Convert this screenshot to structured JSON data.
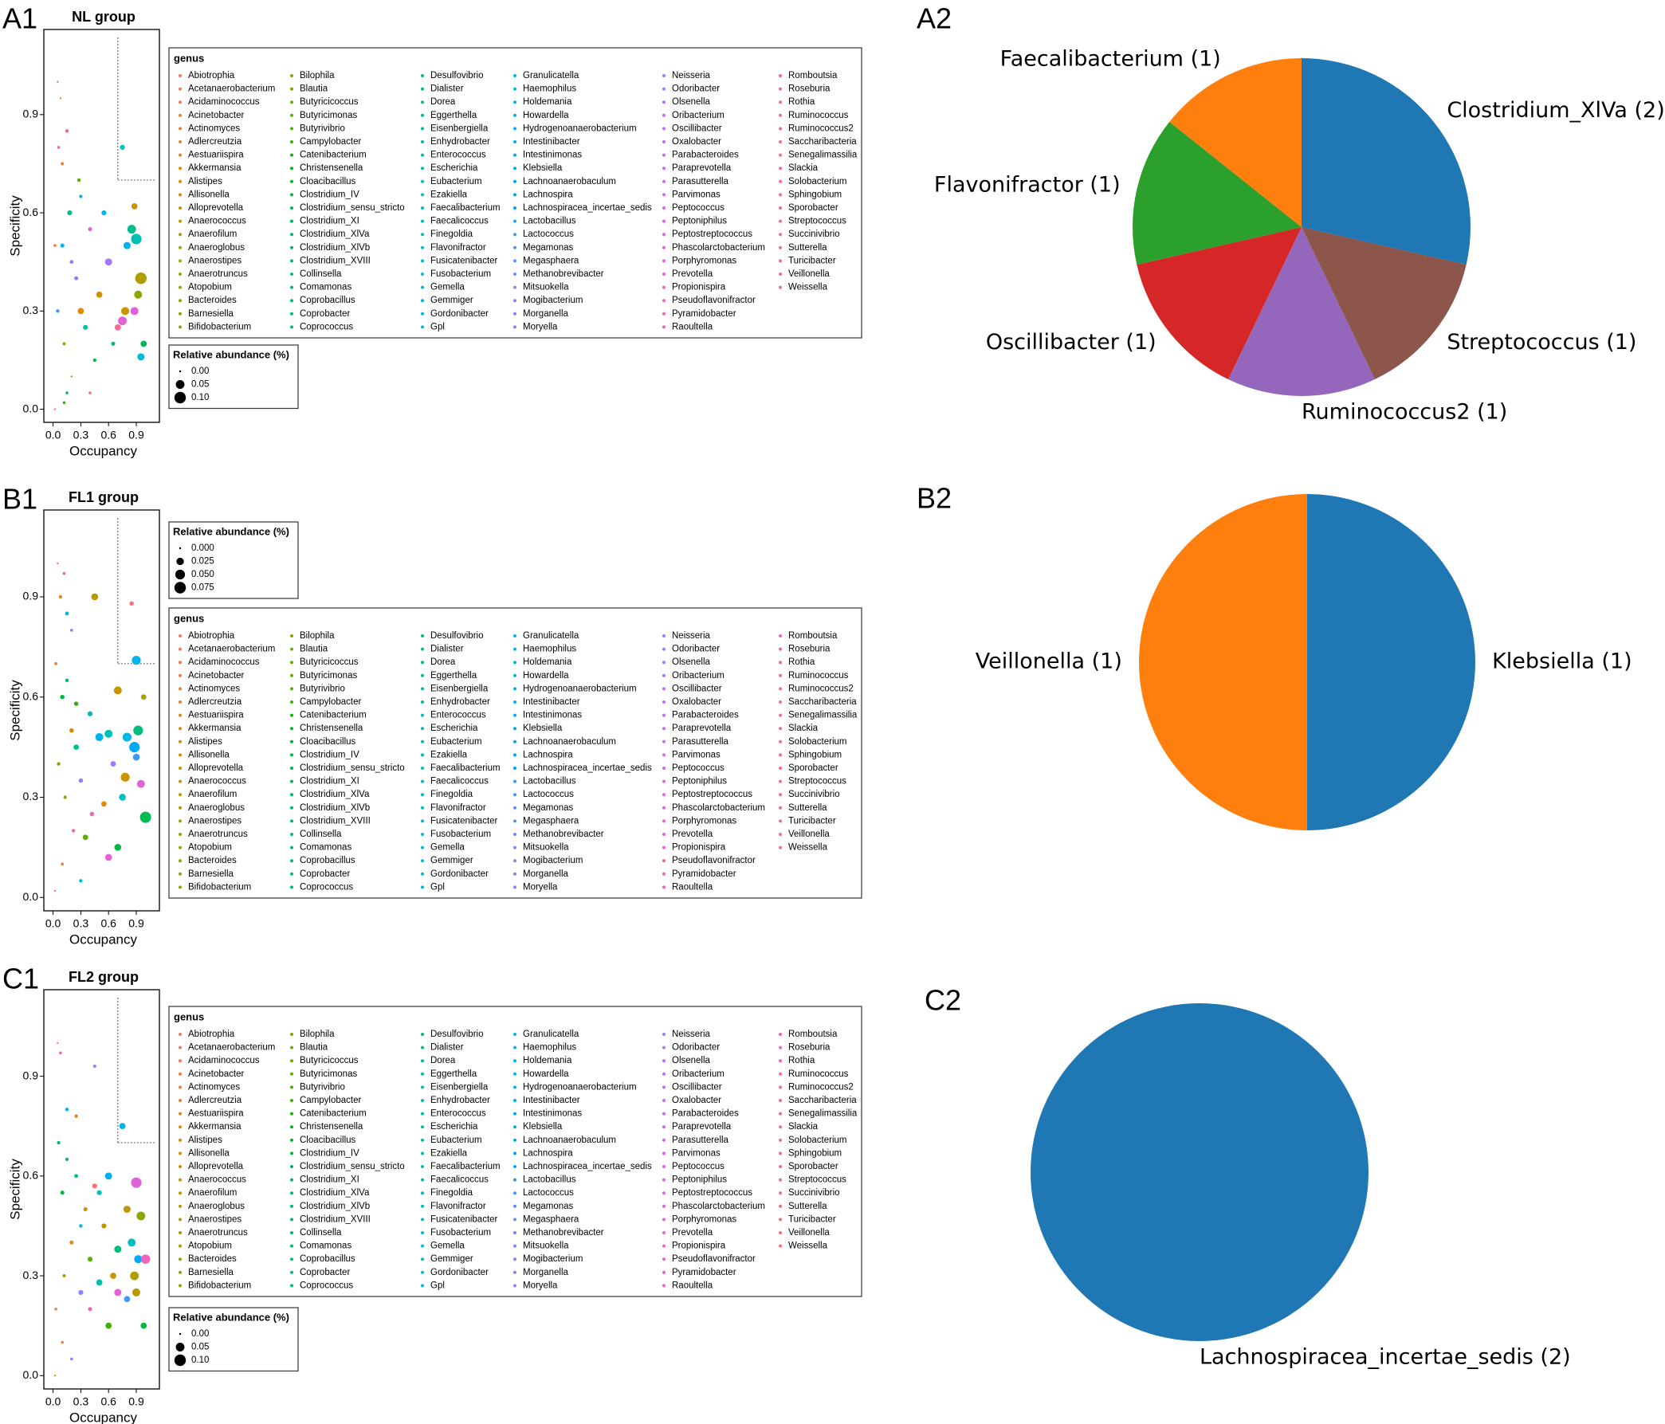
{
  "genus": {
    "title": "genus",
    "names": [
      "Abiotrophia",
      "Acetanaerobacterium",
      "Acidaminococcus",
      "Acinetobacter",
      "Actinomyces",
      "Adlercreutzia",
      "Aestuariispira",
      "Akkermansia",
      "Alistipes",
      "Allisonella",
      "Alloprevotella",
      "Anaerococcus",
      "Anaerofilum",
      "Anaeroglobus",
      "Anaerostipes",
      "Anaerotruncus",
      "Atopobium",
      "Bacteroides",
      "Barnesiella",
      "Bifidobacterium",
      "Bilophila",
      "Blautia",
      "Butyricicoccus",
      "Butyricimonas",
      "Butyrivibrio",
      "Campylobacter",
      "Catenibacterium",
      "Christensenella",
      "Cloacibacillus",
      "Clostridium_IV",
      "Clostridium_sensu_stricto",
      "Clostridium_XI",
      "Clostridium_XlVa",
      "Clostridium_XlVb",
      "Clostridium_XVIII",
      "Collinsella",
      "Comamonas",
      "Coprobacillus",
      "Coprobacter",
      "Coprococcus",
      "Desulfovibrio",
      "Dialister",
      "Dorea",
      "Eggerthella",
      "Eisenbergiella",
      "Enhydrobacter",
      "Enterococcus",
      "Escherichia",
      "Eubacterium",
      "Ezakiella",
      "Faecalibacterium",
      "Faecalicoccus",
      "Finegoldia",
      "Flavonifractor",
      "Fusicatenibacter",
      "Fusobacterium",
      "Gemella",
      "Gemmiger",
      "Gordonibacter",
      "Gpl",
      "Granulicatella",
      "Haemophilus",
      "Holdemania",
      "Howardella",
      "Hydrogenoanaerobacterium",
      "Intestinibacter",
      "Intestinimonas",
      "Klebsiella",
      "Lachnoanaerobaculum",
      "Lachnospira",
      "Lachnospiracea_incertae_sedis",
      "Lactobacillus",
      "Lactococcus",
      "Megamonas",
      "Megasphaera",
      "Methanobrevibacter",
      "Mitsuokella",
      "Mogibacterium",
      "Morganella",
      "Moryella",
      "Neisseria",
      "Odoribacter",
      "Olsenella",
      "Oribacterium",
      "Oscillibacter",
      "Oxalobacter",
      "Parabacteroides",
      "Paraprevotella",
      "Parasutterella",
      "Parvimonas",
      "Peptococcus",
      "Peptoniphilus",
      "Peptostreptococcus",
      "Phascolarctobacterium",
      "Porphyromonas",
      "Prevotella",
      "Propionispira",
      "Pseudoflavonifractor",
      "Pyramidobacter",
      "Raoultella",
      "Romboutsia",
      "Roseburia",
      "Rothia",
      "Ruminococcus",
      "Ruminococcus2",
      "Saccharibacteria",
      "Senegalimassilia",
      "Slackia",
      "Solobacterium",
      "Sphingobium",
      "Sporobacter",
      "Streptococcus",
      "Succinivibrio",
      "Sutterella",
      "Turicibacter",
      "Veillonella",
      "Weissella"
    ],
    "colors": [
      "#F8766D",
      "#F6785F",
      "#F37B51",
      "#F07E43",
      "#EC8134",
      "#E88424",
      "#E3871A",
      "#DE8A00",
      "#D98D00",
      "#D38F00",
      "#CD9200",
      "#C69500",
      "#BF9800",
      "#B89A00",
      "#B09D00",
      "#A89F00",
      "#A0A100",
      "#98A300",
      "#8FA600",
      "#86A800",
      "#7DAA00",
      "#73AC00",
      "#68AE00",
      "#5BB000",
      "#4CB200",
      "#38B400",
      "#14B500",
      "#00B625",
      "#00B734",
      "#00B840",
      "#00B94A",
      "#00BA53",
      "#00BA5B",
      "#00BB62",
      "#00BB68",
      "#00BC6E",
      "#00BC73",
      "#00BD78",
      "#00BD7D",
      "#00BD82",
      "#00BE87",
      "#00BE8C",
      "#00BF91",
      "#00BF96",
      "#00BF9B",
      "#00C0A0",
      "#00C0A5",
      "#00C0AA",
      "#00C0AF",
      "#00C0B4",
      "#00C0B9",
      "#00BFBE",
      "#00BFC3",
      "#00BFC7",
      "#00BECC",
      "#00BED0",
      "#00BDD4",
      "#00BCD8",
      "#00BBDC",
      "#00BAE0",
      "#00B9E3",
      "#00B7E7",
      "#00B5EA",
      "#00B3ED",
      "#00B1F0",
      "#00AFF3",
      "#00ACF6",
      "#00A9F8",
      "#00A6FA",
      "#00A3FC",
      "#00A0FE",
      "#289CFF",
      "#3F98FF",
      "#5094FF",
      "#5E91FF",
      "#6A8DFF",
      "#7589FF",
      "#7F86FF",
      "#8982FF",
      "#927FFF",
      "#9A7BFF",
      "#A278FF",
      "#AA75FE",
      "#B172FC",
      "#B770FA",
      "#BD6DF7",
      "#C36BF4",
      "#C869F1",
      "#CD68ED",
      "#D266E9",
      "#D665E5",
      "#DA64E1",
      "#DE63DC",
      "#E162D7",
      "#E462D2",
      "#E762CD",
      "#E962C8",
      "#EB62C3",
      "#ED62BE",
      "#EF63B9",
      "#F063B4",
      "#F164AF",
      "#F265AA",
      "#F366A5",
      "#F467A0",
      "#F5689B",
      "#F66996",
      "#F66A91",
      "#F76B8C",
      "#F76C87",
      "#F76D83",
      "#F76E7F",
      "#F76F7B",
      "#F77077",
      "#F77173",
      "#F8726F",
      "#F8736C"
    ]
  },
  "chart_data": [
    {
      "type": "scatter",
      "panel": "A1",
      "title": "NL group",
      "x_label": "Occupancy",
      "y_label": "Specificity",
      "xlim": [
        -0.1,
        1.15
      ],
      "ylim": [
        -0.04,
        1.16
      ],
      "xticks": [
        {
          "value": 0,
          "label": "0.0"
        },
        {
          "value": 0.3,
          "label": "0.3"
        },
        {
          "value": 0.6,
          "label": "0.6"
        },
        {
          "value": 0.9,
          "label": "0.9"
        }
      ],
      "yticks": [
        {
          "value": 0,
          "label": "0.0"
        },
        {
          "value": 0.3,
          "label": "0.3"
        },
        {
          "value": 0.6,
          "label": "0.6"
        },
        {
          "value": 0.9,
          "label": "0.9"
        }
      ],
      "cutoff_x": 0.7,
      "cutoff_y": 0.7,
      "size_legend": {
        "title": "Relative abundance (%)",
        "ticks": [
          {
            "value": 0,
            "label": "0.00"
          },
          {
            "value": 0.05,
            "label": "0.05"
          },
          {
            "value": 0.1,
            "label": "0.10"
          }
        ]
      },
      "x": [
        0.02,
        0.05,
        0.08,
        0.1,
        0.12,
        0.15,
        0.18,
        0.2,
        0.25,
        0.28,
        0.3,
        0.35,
        0.4,
        0.45,
        0.5,
        0.55,
        0.6,
        0.65,
        0.7,
        0.75,
        0.78,
        0.8,
        0.85,
        0.88,
        0.9,
        0.92,
        0.95,
        0.98,
        0.02,
        0.05,
        0.1,
        0.15,
        0.2,
        0.3,
        0.4,
        0.06,
        0.12,
        0.75,
        0.95,
        0.88
      ],
      "y": [
        0.0,
        1.0,
        0.95,
        0.5,
        0.2,
        0.85,
        0.6,
        0.1,
        0.4,
        0.7,
        0.3,
        0.25,
        0.55,
        0.15,
        0.35,
        0.6,
        0.45,
        0.2,
        0.25,
        0.8,
        0.3,
        0.5,
        0.55,
        0.3,
        0.52,
        0.35,
        0.4,
        0.2,
        0.5,
        0.3,
        0.75,
        0.05,
        0.45,
        0.65,
        0.05,
        0.8,
        0.02,
        0.27,
        0.16,
        0.62
      ],
      "sizes": [
        0,
        0,
        0,
        0.005,
        0.002,
        0.003,
        0.01,
        0,
        0.005,
        0.003,
        0.02,
        0.01,
        0.005,
        0.002,
        0.02,
        0.01,
        0.03,
        0.005,
        0.02,
        0.01,
        0.04,
        0.03,
        0.05,
        0.04,
        0.08,
        0.04,
        0.1,
        0.02,
        0.001,
        0.003,
        0.002,
        0.001,
        0.004,
        0.002,
        0.001,
        0.001,
        0.001,
        0.05,
        0.03,
        0.02
      ],
      "colors": [
        "#F8766D",
        "#EF63B9",
        "#E3871A",
        "#00B9E3",
        "#A0A100",
        "#F366A5",
        "#00BE87",
        "#B89A00",
        "#7F86FF",
        "#5BB000",
        "#DE8A00",
        "#00C0AA",
        "#E462D2",
        "#00B840",
        "#D38F00",
        "#00B5EA",
        "#A278FF",
        "#00BD78",
        "#F66996",
        "#00BFC3",
        "#C69500",
        "#00B1F0",
        "#00BE8C",
        "#E162D7",
        "#00C0B4",
        "#86A800",
        "#B09D00",
        "#00BA53",
        "#F07E43",
        "#3F98FF",
        "#EC8134",
        "#00BB62",
        "#9A7BFF",
        "#00A9F8",
        "#F77077",
        "#F164AF",
        "#38B400",
        "#E462D2",
        "#00BCD8",
        "#CD9200"
      ]
    },
    {
      "type": "pie",
      "panel": "A2",
      "categories": [
        "Clostridium_XlVa (2)",
        "Streptococcus (1)",
        "Ruminococcus2 (1)",
        "Oscillibacter (1)",
        "Flavonifractor (1)",
        "Faecalibacterium (1)"
      ],
      "values": [
        2,
        1,
        1,
        1,
        1,
        1
      ],
      "colors": [
        "#1f77b4",
        "#8c564b",
        "#9467bd",
        "#d62728",
        "#2ca02c",
        "#ff7f0e"
      ]
    },
    {
      "type": "scatter",
      "panel": "B1",
      "title": "FL1 group",
      "x_label": "Occupancy",
      "y_label": "Specificity",
      "xlim": [
        -0.1,
        1.15
      ],
      "ylim": [
        -0.04,
        1.16
      ],
      "xticks": [
        {
          "value": 0,
          "label": "0.0"
        },
        {
          "value": 0.3,
          "label": "0.3"
        },
        {
          "value": 0.6,
          "label": "0.6"
        },
        {
          "value": 0.9,
          "label": "0.9"
        }
      ],
      "yticks": [
        {
          "value": 0,
          "label": "0.0"
        },
        {
          "value": 0.3,
          "label": "0.3"
        },
        {
          "value": 0.6,
          "label": "0.6"
        },
        {
          "value": 0.9,
          "label": "0.9"
        }
      ],
      "cutoff_x": 0.7,
      "cutoff_y": 0.7,
      "size_legend": {
        "title": "Relative abundance (%)",
        "ticks": [
          {
            "value": 0,
            "label": "0.000"
          },
          {
            "value": 0.025,
            "label": "0.025"
          },
          {
            "value": 0.05,
            "label": "0.050"
          },
          {
            "value": 0.075,
            "label": "0.075"
          }
        ]
      },
      "x": [
        0.02,
        0.05,
        0.08,
        0.1,
        0.13,
        0.15,
        0.2,
        0.22,
        0.25,
        0.3,
        0.35,
        0.4,
        0.45,
        0.5,
        0.55,
        0.6,
        0.65,
        0.7,
        0.75,
        0.8,
        0.85,
        0.88,
        0.9,
        0.92,
        0.95,
        1.0,
        0.03,
        0.06,
        0.1,
        0.15,
        0.2,
        0.3,
        0.42,
        0.6,
        0.78,
        0.9,
        0.98,
        0.12,
        0.25,
        0.7
      ],
      "y": [
        0.02,
        1.0,
        0.9,
        0.6,
        0.3,
        0.85,
        0.5,
        0.2,
        0.45,
        0.35,
        0.18,
        0.55,
        0.9,
        0.48,
        0.28,
        0.12,
        0.4,
        0.62,
        0.3,
        0.48,
        0.88,
        0.45,
        0.71,
        0.5,
        0.34,
        0.24,
        0.7,
        0.4,
        0.1,
        0.65,
        0.8,
        0.05,
        0.25,
        0.49,
        0.36,
        0.42,
        0.6,
        0.97,
        0.58,
        0.15
      ],
      "sizes": [
        0,
        0,
        0.002,
        0.005,
        0.002,
        0.003,
        0.005,
        0.002,
        0.01,
        0.005,
        0.01,
        0.008,
        0.02,
        0.03,
        0.01,
        0.02,
        0.01,
        0.03,
        0.02,
        0.04,
        0.005,
        0.06,
        0.04,
        0.05,
        0.03,
        0.07,
        0.001,
        0.002,
        0.001,
        0.002,
        0.001,
        0.002,
        0.005,
        0.03,
        0.04,
        0.02,
        0.01,
        0.001,
        0.005,
        0.02
      ],
      "colors": [
        "#EF63B9",
        "#F8766D",
        "#E3871A",
        "#00B840",
        "#A0A100",
        "#00B9E3",
        "#D38F00",
        "#F366A5",
        "#00BE8C",
        "#7F86FF",
        "#5BB000",
        "#00C0AA",
        "#B89A00",
        "#00B1F0",
        "#DE8A00",
        "#E462D2",
        "#A278FF",
        "#C69500",
        "#00BFC3",
        "#00B9E3",
        "#F77077",
        "#00A9F8",
        "#00B5EA",
        "#00BD78",
        "#E162D7",
        "#00BA53",
        "#F07E43",
        "#86A800",
        "#EC8134",
        "#00BB62",
        "#9A7BFF",
        "#00BCD8",
        "#F164AF",
        "#00C0B4",
        "#CD9200",
        "#3F98FF",
        "#B09D00",
        "#F366A5",
        "#38B400",
        "#00B840"
      ]
    },
    {
      "type": "pie",
      "panel": "B2",
      "categories": [
        "Klebsiella (1)",
        "Veillonella (1)"
      ],
      "values": [
        1,
        1
      ],
      "colors": [
        "#1f77b4",
        "#ff7f0e"
      ]
    },
    {
      "type": "scatter",
      "panel": "C1",
      "title": "FL2 group",
      "x_label": "Occupancy",
      "y_label": "Specificity",
      "xlim": [
        -0.1,
        1.15
      ],
      "ylim": [
        -0.04,
        1.16
      ],
      "xticks": [
        {
          "value": 0,
          "label": "0.0"
        },
        {
          "value": 0.3,
          "label": "0.3"
        },
        {
          "value": 0.6,
          "label": "0.6"
        },
        {
          "value": 0.9,
          "label": "0.9"
        }
      ],
      "yticks": [
        {
          "value": 0,
          "label": "0.0"
        },
        {
          "value": 0.3,
          "label": "0.3"
        },
        {
          "value": 0.6,
          "label": "0.6"
        },
        {
          "value": 0.9,
          "label": "0.9"
        }
      ],
      "cutoff_x": 0.7,
      "cutoff_y": 0.7,
      "size_legend": {
        "title": "Relative abundance (%)",
        "ticks": [
          {
            "value": 0,
            "label": "0.00"
          },
          {
            "value": 0.05,
            "label": "0.05"
          },
          {
            "value": 0.1,
            "label": "0.10"
          }
        ]
      },
      "x": [
        0.02,
        0.05,
        0.08,
        0.1,
        0.12,
        0.15,
        0.2,
        0.25,
        0.3,
        0.35,
        0.4,
        0.45,
        0.5,
        0.55,
        0.6,
        0.65,
        0.7,
        0.75,
        0.8,
        0.85,
        0.88,
        0.9,
        0.92,
        0.95,
        1.0,
        0.03,
        0.06,
        0.1,
        0.15,
        0.2,
        0.3,
        0.4,
        0.5,
        0.6,
        0.7,
        0.8,
        0.9,
        0.98,
        0.45,
        0.25
      ],
      "y": [
        0.0,
        1.0,
        0.97,
        0.55,
        0.3,
        0.8,
        0.4,
        0.6,
        0.25,
        0.5,
        0.35,
        0.93,
        0.28,
        0.45,
        0.6,
        0.3,
        0.25,
        0.75,
        0.5,
        0.4,
        0.3,
        0.58,
        0.35,
        0.48,
        0.35,
        0.2,
        0.7,
        0.1,
        0.65,
        0.05,
        0.45,
        0.2,
        0.55,
        0.15,
        0.38,
        0.23,
        0.25,
        0.15,
        0.57,
        0.78
      ],
      "sizes": [
        0,
        0,
        0.001,
        0.005,
        0.002,
        0.003,
        0.005,
        0.004,
        0.01,
        0.005,
        0.01,
        0.002,
        0.02,
        0.01,
        0.03,
        0.02,
        0.03,
        0.02,
        0.03,
        0.04,
        0.05,
        0.08,
        0.04,
        0.05,
        0.06,
        0.001,
        0.002,
        0.001,
        0.002,
        0.001,
        0.003,
        0.005,
        0.01,
        0.02,
        0.03,
        0.02,
        0.04,
        0.02,
        0.01,
        0.003
      ],
      "colors": [
        "#DE8A00",
        "#F8766D",
        "#F366A5",
        "#00B840",
        "#A0A100",
        "#00B9E3",
        "#E3871A",
        "#00BE8C",
        "#7F86FF",
        "#D38F00",
        "#5BB000",
        "#A278FF",
        "#00C0AA",
        "#B89A00",
        "#00B1F0",
        "#CD9200",
        "#E462D2",
        "#00B5EA",
        "#C69500",
        "#00BFC3",
        "#B09D00",
        "#E162D7",
        "#00A9F8",
        "#86A800",
        "#EF63B9",
        "#F07E43",
        "#00BA53",
        "#EC8134",
        "#00BB62",
        "#9A7BFF",
        "#00BCD8",
        "#F164AF",
        "#00C0B4",
        "#38B400",
        "#00BD78",
        "#3F98FF",
        "#B89A00",
        "#00B840",
        "#F77077",
        "#E3871A"
      ]
    },
    {
      "type": "pie",
      "panel": "C2",
      "categories": [
        "Lachnospiracea_incertae_sedis (2)"
      ],
      "values": [
        2
      ],
      "colors": [
        "#1f77b4"
      ]
    }
  ]
}
